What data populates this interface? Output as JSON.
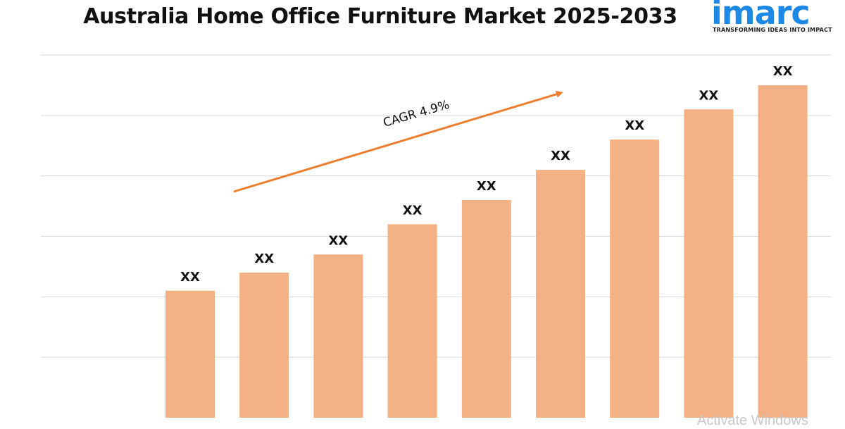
{
  "chart_data": {
    "type": "bar",
    "title": "Australia Home Office Furniture Market 2025-2033",
    "categories": [
      "",
      "",
      "",
      "",
      "",
      "",
      "",
      "",
      ""
    ],
    "values": [
      21,
      24,
      27,
      32,
      36,
      41,
      46,
      51,
      55
    ],
    "data_labels": [
      "XX",
      "XX",
      "XX",
      "XX",
      "XX",
      "XX",
      "XX",
      "XX",
      "XX"
    ],
    "annotation": "CAGR 4.9%",
    "xlabel": "",
    "ylabel": "",
    "ylim": [
      0,
      60
    ],
    "grid": true,
    "legend": "none",
    "colors": {
      "bar": "#f4b183",
      "arrow": "#ed7d31",
      "grid": "#d9d9d9"
    }
  },
  "logo": {
    "word": "imarc",
    "tagline": "TRANSFORMING IDEAS INTO IMPACT",
    "color": "#1e88e5"
  },
  "watermark": "Activate Windows"
}
